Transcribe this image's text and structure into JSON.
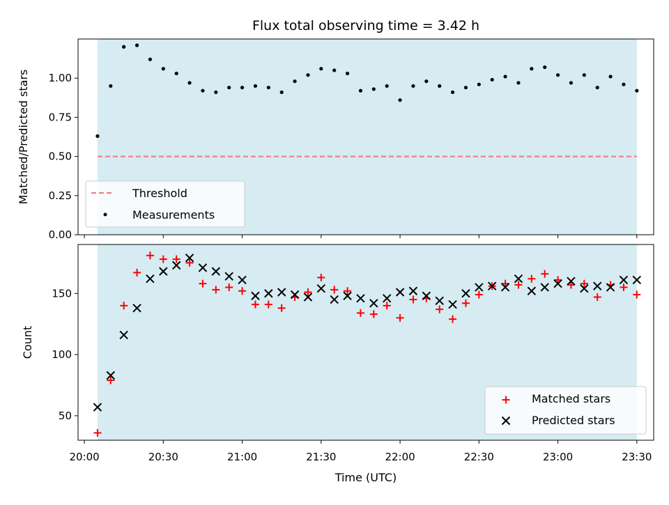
{
  "chart_data": [
    {
      "type": "scatter",
      "title": "Flux total observing time = 3.42 h",
      "xlabel": "",
      "ylabel": "Matched/Predicted stars",
      "ylim": [
        0,
        1.25
      ],
      "yticks": [
        "0.00",
        "0.25",
        "0.50",
        "0.75",
        "1.00"
      ],
      "xlim": [
        "20:00",
        "23:30"
      ],
      "shaded_range": [
        "20:05",
        "23:30"
      ],
      "threshold": 0.5,
      "legend_position": "lower-left",
      "series": [
        {
          "name": "Threshold",
          "kind": "dashed-line",
          "color": "#f07878",
          "x": [
            "20:05",
            "23:30"
          ],
          "values": [
            0.5,
            0.5
          ]
        },
        {
          "name": "Measurements",
          "kind": "dot",
          "color": "#000000",
          "x": [
            "20:05",
            "20:10",
            "20:15",
            "20:20",
            "20:25",
            "20:30",
            "20:35",
            "20:40",
            "20:45",
            "20:50",
            "20:55",
            "21:00",
            "21:05",
            "21:10",
            "21:15",
            "21:20",
            "21:25",
            "21:30",
            "21:35",
            "21:40",
            "21:45",
            "21:50",
            "21:55",
            "22:00",
            "22:05",
            "22:10",
            "22:15",
            "22:20",
            "22:25",
            "22:30",
            "22:35",
            "22:40",
            "22:45",
            "22:50",
            "22:55",
            "23:00",
            "23:05",
            "23:10",
            "23:15",
            "23:20",
            "23:25",
            "23:30"
          ],
          "values": [
            0.63,
            0.95,
            1.2,
            1.21,
            1.12,
            1.06,
            1.03,
            0.97,
            0.92,
            0.91,
            0.94,
            0.94,
            0.95,
            0.94,
            0.91,
            0.98,
            1.02,
            1.06,
            1.05,
            1.03,
            0.92,
            0.93,
            0.95,
            0.86,
            0.95,
            0.98,
            0.95,
            0.91,
            0.94,
            0.96,
            0.99,
            1.01,
            0.97,
            1.06,
            1.07,
            1.02,
            0.97,
            1.02,
            0.94,
            1.01,
            0.96,
            0.92
          ]
        }
      ]
    },
    {
      "type": "scatter",
      "title": "",
      "xlabel": "Time (UTC)",
      "ylabel": "Count",
      "ylim": [
        30,
        190
      ],
      "yticks": [
        "50",
        "100",
        "150"
      ],
      "xlim": [
        "20:00",
        "23:30"
      ],
      "xticks": [
        "20:00",
        "20:30",
        "21:00",
        "21:30",
        "22:00",
        "22:30",
        "23:00",
        "23:30"
      ],
      "shaded_range": [
        "20:05",
        "23:30"
      ],
      "legend_position": "lower-right",
      "series": [
        {
          "name": "Matched stars",
          "marker": "plus",
          "color": "#ff0000",
          "x": [
            "20:05",
            "20:10",
            "20:15",
            "20:20",
            "20:25",
            "20:30",
            "20:35",
            "20:40",
            "20:45",
            "20:50",
            "20:55",
            "21:00",
            "21:05",
            "21:10",
            "21:15",
            "21:20",
            "21:25",
            "21:30",
            "21:35",
            "21:40",
            "21:45",
            "21:50",
            "21:55",
            "22:00",
            "22:05",
            "22:10",
            "22:15",
            "22:20",
            "22:25",
            "22:30",
            "22:35",
            "22:40",
            "22:45",
            "22:50",
            "22:55",
            "23:00",
            "23:05",
            "23:10",
            "23:15",
            "23:20",
            "23:25",
            "23:30"
          ],
          "values": [
            36,
            79,
            140,
            167,
            181,
            178,
            178,
            175,
            158,
            153,
            155,
            152,
            141,
            141,
            138,
            147,
            151,
            163,
            153,
            152,
            134,
            133,
            140,
            130,
            145,
            146,
            137,
            129,
            142,
            149,
            156,
            158,
            157,
            162,
            166,
            161,
            157,
            158,
            147,
            157,
            155,
            149
          ]
        },
        {
          "name": "Predicted stars",
          "marker": "x",
          "color": "#000000",
          "x": [
            "20:05",
            "20:10",
            "20:15",
            "20:20",
            "20:25",
            "20:30",
            "20:35",
            "20:40",
            "20:45",
            "20:50",
            "20:55",
            "21:00",
            "21:05",
            "21:10",
            "21:15",
            "21:20",
            "21:25",
            "21:30",
            "21:35",
            "21:40",
            "21:45",
            "21:50",
            "21:55",
            "22:00",
            "22:05",
            "22:10",
            "22:15",
            "22:20",
            "22:25",
            "22:30",
            "22:35",
            "22:40",
            "22:45",
            "22:50",
            "22:55",
            "23:00",
            "23:05",
            "23:10",
            "23:15",
            "23:20",
            "23:25",
            "23:30"
          ],
          "values": [
            57,
            83,
            116,
            138,
            162,
            168,
            173,
            179,
            171,
            168,
            164,
            161,
            148,
            150,
            151,
            149,
            147,
            154,
            145,
            148,
            146,
            142,
            146,
            151,
            152,
            148,
            144,
            141,
            150,
            155,
            156,
            155,
            162,
            152,
            155,
            158,
            160,
            154,
            156,
            155,
            161,
            161
          ]
        }
      ]
    }
  ],
  "colors": {
    "shade": "#add8e6",
    "threshold": "#f07878",
    "matched": "#ff0000",
    "predicted": "#000000"
  }
}
